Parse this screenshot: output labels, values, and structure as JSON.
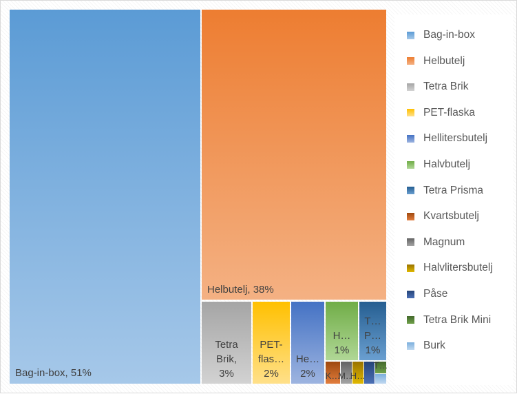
{
  "chart_data": {
    "type": "treemap",
    "title": "",
    "series": [
      {
        "name": "Bag-in-box",
        "value": 51,
        "label": "Bag-in-box, 51%",
        "color_top": "#5b9bd5",
        "color_bottom": "#a6c8e9"
      },
      {
        "name": "Helbutelj",
        "value": 38,
        "label": "Helbutelj, 38%",
        "color_top": "#ed7d31",
        "color_bottom": "#f4b183"
      },
      {
        "name": "Tetra Brik",
        "value": 3,
        "label": "Tetra Brik, 3%",
        "label_lines": [
          "Tetra",
          "Brik,",
          "3%"
        ],
        "color_top": "#a5a5a5",
        "color_bottom": "#d2d2d2"
      },
      {
        "name": "PET-flaska",
        "value": 2,
        "label": "PET-flaska, 2%",
        "label_lines": [
          "PET-",
          "flas…",
          "2%"
        ],
        "color_top": "#ffc000",
        "color_bottom": "#ffe08a"
      },
      {
        "name": "Hellitersbutelj",
        "value": 2,
        "label": "Hellitersbutelj, 2%",
        "label_lines": [
          "He…",
          "2%"
        ],
        "color_top": "#4472c4",
        "color_bottom": "#9db4e0"
      },
      {
        "name": "Halvbutelj",
        "value": 1,
        "label": "Halvbutelj, 1%",
        "label_lines": [
          "H…",
          "1%"
        ],
        "color_top": "#70ad47",
        "color_bottom": "#b0d796"
      },
      {
        "name": "Tetra Prisma",
        "value": 1,
        "label": "Tetra Prisma, 1%",
        "label_lines": [
          "T…",
          "P…",
          "1%"
        ],
        "color_top": "#255e91",
        "color_bottom": "#6a9fd0"
      },
      {
        "name": "Kvartsbutelj",
        "value": 0.4,
        "label": "K…",
        "label_lines": [
          "K…"
        ],
        "color_top": "#9e480e",
        "color_bottom": "#e27d3d"
      },
      {
        "name": "Magnum",
        "value": 0.35,
        "label": "M…",
        "label_lines": [
          "M…"
        ],
        "color_top": "#636363",
        "color_bottom": "#a3a3a3"
      },
      {
        "name": "Halvlitersbutelj",
        "value": 0.3,
        "label": "H…",
        "label_lines": [
          "H…"
        ],
        "color_top": "#997300",
        "color_bottom": "#e0b800"
      },
      {
        "name": "Påse",
        "value": 0.25,
        "label": "",
        "label_lines": [],
        "color_top": "#264478",
        "color_bottom": "#4a6fb5"
      },
      {
        "name": "Tetra Brik Mini",
        "value": 0.12,
        "label": "T…",
        "label_lines": [
          "T…"
        ],
        "color_top": "#43682b",
        "color_bottom": "#6fa14a"
      },
      {
        "name": "Burk",
        "value": 0.12,
        "label": "",
        "label_lines": [],
        "color_top": "#7cafdd",
        "color_bottom": "#c0d9f0"
      }
    ],
    "legend_position": "right",
    "grid": false
  },
  "colors": {
    "label_text": "#404040",
    "legend_text": "#595959",
    "border": "#d9d9d9"
  }
}
